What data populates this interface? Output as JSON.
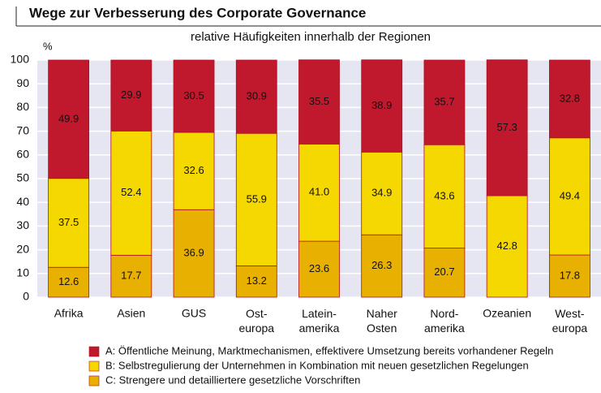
{
  "chart_data": {
    "type": "bar",
    "stacked": true,
    "title": "Wege zur Verbesserung des Corporate Governance",
    "subtitle": "relative Häufigkeiten innerhalb der Regionen",
    "y_label": "%",
    "categories": [
      "Afrika",
      "Asien",
      "GUS",
      "Ost-\neuropa",
      "Latein-\namerika",
      "Naher\nOsten",
      "Nord-\namerika",
      "Ozeanien",
      "West-\neuropa"
    ],
    "series": [
      {
        "name": "A: Öffentliche Meinung, Marktmechanismen, effektivere Umsetzung bereits vorhandener Regeln",
        "color": "#c0182c",
        "values": [
          49.9,
          29.9,
          30.5,
          30.9,
          35.5,
          38.9,
          35.7,
          57.3,
          32.8
        ],
        "value_labels": [
          "49.9",
          "29.9",
          "30.5",
          "30.9",
          "35.5",
          "38.9",
          "35.7",
          "57.3",
          "32.8"
        ]
      },
      {
        "name": "B: Selbstregulierung der Unternehmen in Kombination mit neuen gesetzlichen Regelungen",
        "color": "#f5d800",
        "values": [
          37.5,
          52.4,
          32.6,
          55.9,
          41.0,
          34.9,
          43.6,
          42.8,
          49.4
        ],
        "value_labels": [
          "37.5",
          "52.4",
          "32.6",
          "55.9",
          "41.0",
          "34.9",
          "43.6",
          "42.8",
          "49.4"
        ]
      },
      {
        "name": "C: Strengere und detailliertere gesetzliche Vorschriften",
        "color": "#e8b000",
        "values": [
          12.6,
          17.7,
          36.9,
          13.2,
          23.6,
          26.3,
          20.7,
          null,
          17.8
        ],
        "value_labels": [
          "12.6",
          "17.7",
          "36.9",
          "13.2",
          "23.6",
          "26.3",
          "20.7",
          null,
          "17.8"
        ]
      }
    ],
    "ylim": [
      0,
      100
    ],
    "yticks": [
      0,
      10,
      20,
      30,
      40,
      50,
      60,
      70,
      80,
      90,
      100
    ],
    "grid": true
  }
}
